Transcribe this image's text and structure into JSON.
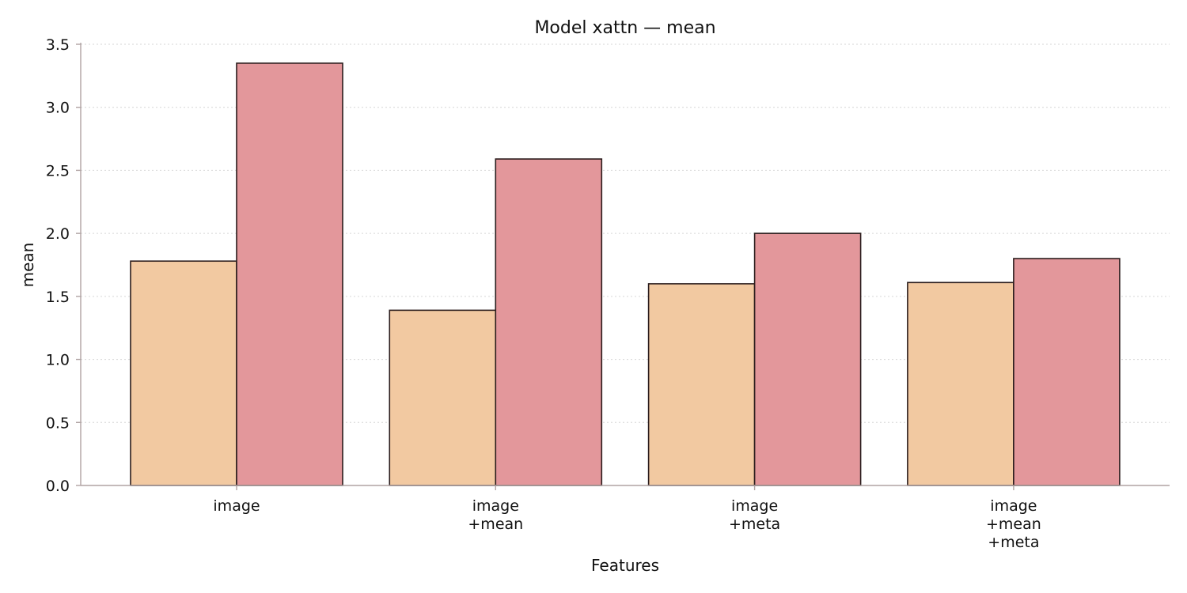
{
  "chart_data": {
    "type": "bar",
    "title": "Model xattn — mean",
    "xlabel": "Features",
    "ylabel": "mean",
    "categories": [
      [
        "image"
      ],
      [
        "image",
        "+mean"
      ],
      [
        "image",
        "+meta"
      ],
      [
        "image",
        "+mean",
        "+meta"
      ]
    ],
    "series": [
      {
        "values": [
          1.78,
          1.39,
          1.6,
          1.61
        ],
        "color": "#f2c9a1"
      },
      {
        "values": [
          3.35,
          2.59,
          2.0,
          1.8
        ],
        "color": "#e3979b"
      }
    ],
    "ylim": [
      0,
      3.5
    ],
    "yticks": [
      0.0,
      0.5,
      1.0,
      1.5,
      2.0,
      2.5,
      3.0,
      3.5
    ],
    "ytick_labels": [
      "0.0",
      "0.5",
      "1.0",
      "1.5",
      "2.0",
      "2.5",
      "3.0",
      "3.5"
    ],
    "grid": "y-dotted",
    "legend": "none"
  },
  "colors": {
    "bar_edge": "#2b1d1d",
    "axis": "#b0a3a3",
    "grid": "#d6d6d6",
    "text": "#111111"
  }
}
